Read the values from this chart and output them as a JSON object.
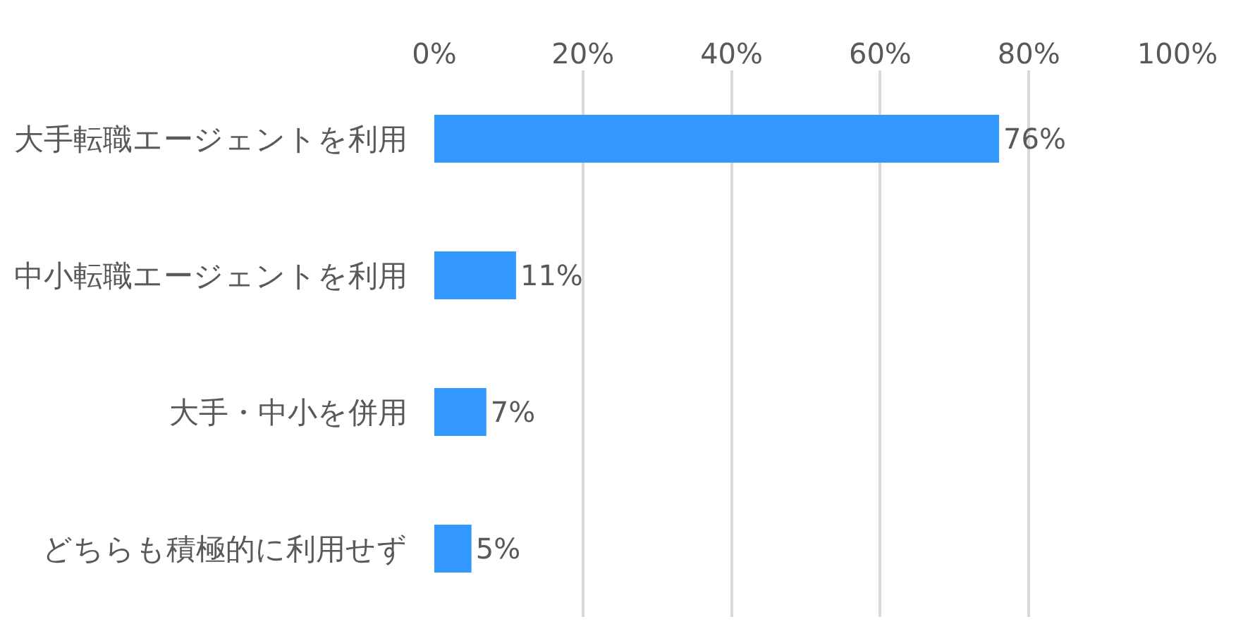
{
  "chart_data": {
    "type": "bar",
    "orientation": "horizontal",
    "categories": [
      "大手転職エージェントを利用",
      "中小転職エージェントを利用",
      "大手・中小を併用",
      "どちらも積極的に利用せず"
    ],
    "values": [
      76,
      11,
      7,
      5
    ],
    "color": "#3399ff",
    "value_labels": [
      "76%",
      "11%",
      "7%",
      "5%"
    ],
    "xlim": [
      0,
      100
    ],
    "xticks": [
      {
        "value": 0,
        "label": "0%"
      },
      {
        "value": 20,
        "label": "20%"
      },
      {
        "value": 40,
        "label": "40%"
      },
      {
        "value": 60,
        "label": "60%"
      },
      {
        "value": 80,
        "label": "80%"
      },
      {
        "value": 100,
        "label": "100%"
      }
    ],
    "grid": "x",
    "legend": false
  }
}
